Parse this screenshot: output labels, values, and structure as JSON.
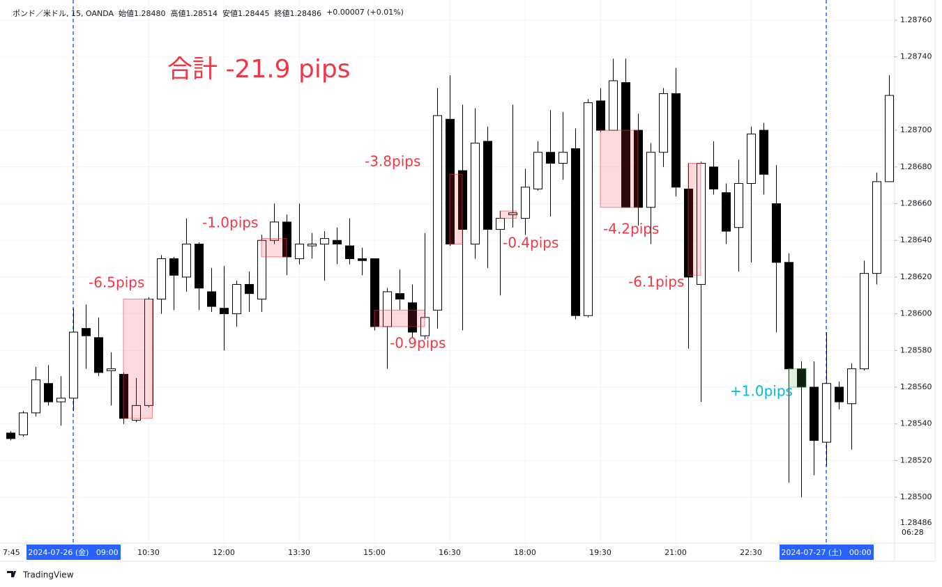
{
  "chart_data": {
    "type": "candlestick",
    "header": [
      "ポンド／米ドル, 15, OANDA",
      "始値1.28480",
      "高値1.28514",
      "安値1.28445",
      "終値1.28486",
      "+0.00007 (+0.01%)"
    ],
    "title": "合計 -21.9 pips",
    "categories": [
      "7:45",
      null,
      null,
      null,
      null,
      "2024-07-26 (金)   09:00",
      null,
      null,
      null,
      null,
      null,
      "10:30",
      null,
      null,
      null,
      null,
      null,
      "12:00",
      null,
      null,
      null,
      null,
      null,
      "13:30",
      null,
      null,
      null,
      null,
      null,
      "15:00",
      null,
      null,
      null,
      null,
      null,
      "16:30",
      null,
      null,
      null,
      null,
      null,
      "18:00",
      null,
      null,
      null,
      null,
      null,
      "19:30",
      null,
      null,
      null,
      null,
      null,
      "21:00",
      null,
      null,
      null,
      null,
      null,
      "22:30",
      null,
      null,
      null,
      null,
      null,
      "2024-07-27 (土)   00:00",
      null,
      null,
      null,
      null,
      null
    ],
    "highlight": [
      5,
      65
    ],
    "open": [
      1.28535,
      1.28534,
      1.28546,
      1.28562,
      1.28552,
      1.28554,
      1.28592,
      1.28587,
      1.28569,
      1.28567,
      1.28542,
      1.2855,
      1.28608,
      1.2863,
      1.2862,
      1.28638,
      1.28612,
      1.28603,
      1.286,
      1.28616,
      1.28608,
      1.2864,
      1.2865,
      1.2863,
      1.28637,
      1.28638,
      1.2864,
      1.28637,
      1.2863,
      1.2863,
      1.28593,
      1.28611,
      1.28606,
      1.28588,
      1.28602,
      1.28706,
      1.28678,
      1.28638,
      1.28694,
      1.28646,
      1.28654,
      1.28652,
      1.28668,
      1.28688,
      1.28682,
      1.2869,
      1.28599,
      1.28716,
      1.287,
      1.28726,
      1.287,
      1.28658,
      1.28688,
      1.2872,
      1.28668,
      1.28616,
      1.2868,
      1.28666,
      1.28647,
      1.28671,
      1.287,
      1.2866,
      1.28628,
      1.2857,
      1.2856,
      1.2853,
      1.2856,
      1.28551,
      1.2857,
      1.28622,
      1.28672
    ],
    "high": [
      1.28536,
      1.28547,
      1.28571,
      1.28572,
      1.28566,
      1.28603,
      1.28605,
      1.28598,
      1.28579,
      1.28568,
      1.28565,
      1.28609,
      1.28632,
      1.28631,
      1.28652,
      1.28639,
      1.28625,
      1.28626,
      1.28618,
      1.28623,
      1.28643,
      1.2866,
      1.28654,
      1.2866,
      1.28644,
      1.28645,
      1.28647,
      1.28652,
      1.28636,
      1.2863,
      1.28614,
      1.28624,
      1.28616,
      1.28644,
      1.28723,
      1.2873,
      1.28714,
      1.28712,
      1.28702,
      1.28656,
      1.28714,
      1.28679,
      1.28694,
      1.28711,
      1.2871,
      1.28701,
      1.28717,
      1.28723,
      1.28739,
      1.28739,
      1.28709,
      1.28693,
      1.28723,
      1.28734,
      1.28682,
      1.28683,
      1.28694,
      1.28671,
      1.28684,
      1.28702,
      1.28704,
      1.28681,
      1.28633,
      1.28574,
      1.28574,
      1.2859,
      1.28563,
      1.28573,
      1.28629,
      1.28677,
      1.2873
    ],
    "low": [
      1.28531,
      1.28533,
      1.28544,
      1.2855,
      1.28539,
      1.28547,
      1.2857,
      1.28566,
      1.2855,
      1.2854,
      1.28541,
      1.28549,
      1.286,
      1.28602,
      1.28612,
      1.28602,
      1.28601,
      1.2858,
      1.28593,
      1.28601,
      1.28601,
      1.28638,
      1.28621,
      1.28627,
      1.2863,
      1.28618,
      1.28627,
      1.28627,
      1.28621,
      1.28591,
      1.2857,
      1.28602,
      1.28587,
      1.28586,
      1.28592,
      1.28637,
      1.28591,
      1.2863,
      1.28625,
      1.2861,
      1.28647,
      1.28643,
      1.28667,
      1.28653,
      1.28673,
      1.28597,
      1.28598,
      1.28699,
      1.287,
      1.28658,
      1.28648,
      1.28638,
      1.2868,
      1.28664,
      1.28581,
      1.28552,
      1.28665,
      1.28638,
      1.28623,
      1.28628,
      1.28665,
      1.2859,
      1.28508,
      1.285,
      1.28512,
      1.28517,
      1.28548,
      1.28526,
      1.28569,
      1.28616,
      1.28672
    ],
    "close": [
      1.28532,
      1.28546,
      1.28564,
      1.28552,
      1.28554,
      1.2859,
      1.28588,
      1.28568,
      1.2857,
      1.28543,
      1.2855,
      1.28608,
      1.2863,
      1.28621,
      1.28638,
      1.28614,
      1.28604,
      1.286,
      1.28616,
      1.28611,
      1.2864,
      1.2865,
      1.28631,
      1.28638,
      1.28638,
      1.28641,
      1.28638,
      1.2863,
      1.28629,
      1.28593,
      1.28612,
      1.28608,
      1.2859,
      1.28598,
      1.28708,
      1.28638,
      1.28646,
      1.28693,
      1.28646,
      1.28652,
      1.28655,
      1.28669,
      1.28688,
      1.28682,
      1.28688,
      1.28599,
      1.28715,
      1.287,
      1.28727,
      1.28658,
      1.28658,
      1.28688,
      1.2872,
      1.28669,
      1.2862,
      1.28682,
      1.28668,
      1.28645,
      1.28671,
      1.28698,
      1.28676,
      1.28628,
      1.2857,
      1.2856,
      1.28531,
      1.28562,
      1.28552,
      1.2857,
      1.28622,
      1.28672,
      1.28719
    ],
    "up_color": "#ffffff",
    "down_color": "#000000",
    "trades": [
      {
        "label": "-6.5pips",
        "start": 9,
        "end": 11.3,
        "upper": 1.28608,
        "lower": 1.28543,
        "color": "#f23645",
        "label_color": "#f23645"
      },
      {
        "label": "-1.0pips",
        "start": 20,
        "end": 22,
        "upper": 1.28641,
        "lower": 1.28631,
        "color": "#f23645",
        "label_color": "#f23645"
      },
      {
        "label": "-0.9pips",
        "start": 29,
        "end": 33,
        "upper": 1.28602,
        "lower": 1.28593,
        "color": "#f23645",
        "label_color": "#f23645"
      },
      {
        "label": "-3.8pips",
        "start": 35,
        "end": 36,
        "upper": 1.28676,
        "lower": 1.28638,
        "color": "#f23645",
        "label_color": "#f23645"
      },
      {
        "label": "-0.4pips",
        "start": 39,
        "end": 40.3,
        "upper": 1.28656,
        "lower": 1.28652,
        "color": "#f23645",
        "label_color": "#f23645"
      },
      {
        "label": "-4.2pips",
        "start": 47,
        "end": 50,
        "upper": 1.287,
        "lower": 1.28658,
        "color": "#f23645",
        "label_color": "#f23645"
      },
      {
        "label": "-6.1pips",
        "start": 54,
        "end": 55,
        "upper": 1.28682,
        "lower": 1.28621,
        "color": "#f23645",
        "label_color": "#f23645"
      },
      {
        "label": "+1.0pips",
        "start": 62,
        "end": 63.4,
        "upper": 1.2857,
        "lower": 1.2856,
        "color": "#4caf50",
        "label_color": "#00bcd4"
      }
    ],
    "ylim": [
      1.28475,
      1.28771
    ],
    "yticks": [
      {
        "value": 1.2876,
        "label": "1.28760"
      },
      {
        "value": 1.2874,
        "label": "1.28740"
      },
      {
        "value": 1.287,
        "label": "1.28700"
      },
      {
        "value": 1.2868,
        "label": "1.28680"
      },
      {
        "value": 1.2866,
        "label": "1.28660"
      },
      {
        "value": 1.2864,
        "label": "1.28640"
      },
      {
        "value": 1.2862,
        "label": "1.28620"
      },
      {
        "value": 1.286,
        "label": "1.28600"
      },
      {
        "value": 1.2858,
        "label": "1.28580"
      },
      {
        "value": 1.2856,
        "label": "1.28560"
      },
      {
        "value": 1.2854,
        "label": "1.28540"
      },
      {
        "value": 1.2852,
        "label": "1.28520"
      },
      {
        "value": 1.285,
        "label": "1.28500"
      }
    ],
    "last_price": 1.28486,
    "countdown": "06:28",
    "grid": true,
    "brand": "TradingView"
  }
}
